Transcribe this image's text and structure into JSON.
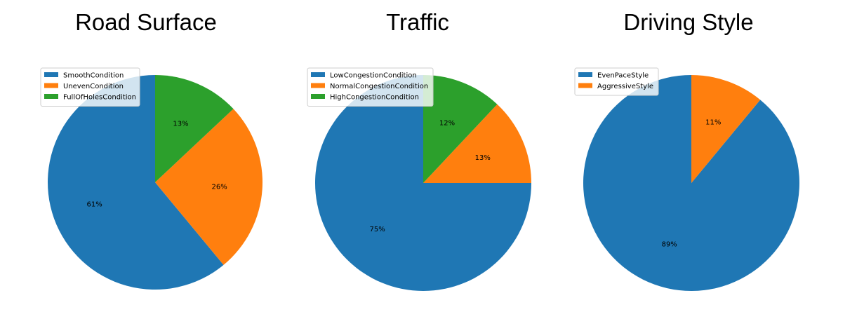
{
  "colors": {
    "blue": "#1f77b4",
    "orange": "#ff7f0e",
    "green": "#2ca02c"
  },
  "chart_data": [
    {
      "type": "pie",
      "title": "Road Surface",
      "legend_position": "top-left",
      "slices": [
        {
          "label": "SmoothCondition",
          "value": 61,
          "pct_label": "61%",
          "color": "#1f77b4"
        },
        {
          "label": "UnevenCondition",
          "value": 26,
          "pct_label": "26%",
          "color": "#ff7f0e"
        },
        {
          "label": "FullOfHolesCondition",
          "value": 13,
          "pct_label": "13%",
          "color": "#2ca02c"
        }
      ]
    },
    {
      "type": "pie",
      "title": "Traffic",
      "legend_position": "top-left",
      "slices": [
        {
          "label": "LowCongestionCondition",
          "value": 75,
          "pct_label": "75%",
          "color": "#1f77b4"
        },
        {
          "label": "NormalCongestionCondition",
          "value": 13,
          "pct_label": "13%",
          "color": "#ff7f0e"
        },
        {
          "label": "HighCongestionCondition",
          "value": 12,
          "pct_label": "12%",
          "color": "#2ca02c"
        }
      ]
    },
    {
      "type": "pie",
      "title": "Driving Style",
      "legend_position": "top-left",
      "slices": [
        {
          "label": "EvenPaceStyle",
          "value": 89,
          "pct_label": "89%",
          "color": "#1f77b4"
        },
        {
          "label": "AggressiveStyle",
          "value": 11,
          "pct_label": "11%",
          "color": "#ff7f0e"
        }
      ]
    }
  ]
}
